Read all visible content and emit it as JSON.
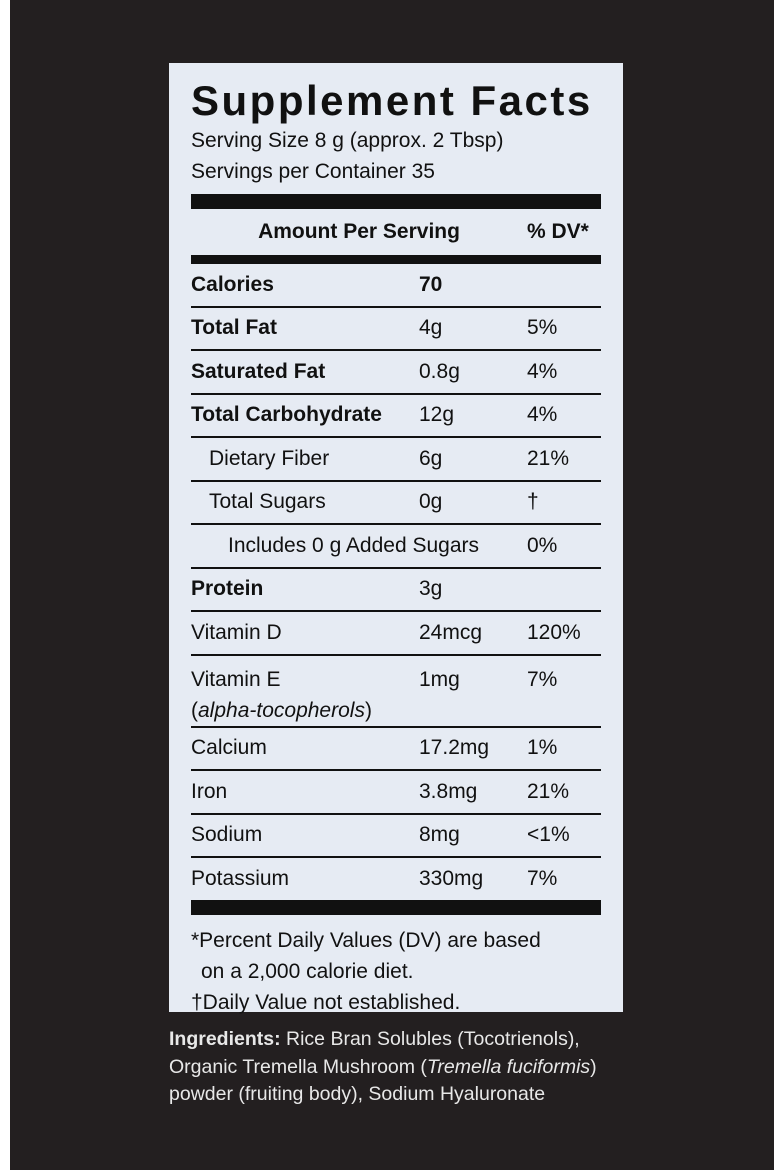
{
  "panel": {
    "title": "Supplement Facts",
    "serving_size": "Serving Size 8 g (approx. 2 Tbsp)",
    "servings_per_container": "Servings per Container 35",
    "header_amount": "Amount Per Serving",
    "header_dv": "% DV*",
    "rows": [
      {
        "name": "Calories",
        "amount": "70",
        "dv": ""
      },
      {
        "name": "Total Fat",
        "amount": "4g",
        "dv": "5%"
      },
      {
        "name": "Saturated Fat",
        "amount": "0.8g",
        "dv": "4%"
      },
      {
        "name": "Total Carbohydrate",
        "amount": "12g",
        "dv": "4%"
      },
      {
        "name": "Dietary Fiber",
        "amount": "6g",
        "dv": "21%"
      },
      {
        "name": "Total Sugars",
        "amount": "0g",
        "dv": "†"
      },
      {
        "name": "Includes 0 g Added Sugars",
        "amount": "",
        "dv": "0%"
      },
      {
        "name": "Protein",
        "amount": "3g",
        "dv": ""
      },
      {
        "name": "Vitamin D",
        "amount": "24mcg",
        "dv": "120%"
      },
      {
        "name": "Vitamin E",
        "subname": "alpha-tocopherols",
        "amount": "1mg",
        "dv": "7%"
      },
      {
        "name": "Calcium",
        "amount": "17.2mg",
        "dv": "1%"
      },
      {
        "name": "Iron",
        "amount": "3.8mg",
        "dv": "21%"
      },
      {
        "name": "Sodium",
        "amount": "8mg",
        "dv": "<1%"
      },
      {
        "name": "Potassium",
        "amount": "330mg",
        "dv": "7%"
      }
    ],
    "footnote_1": "*Percent Daily Values (DV) are based",
    "footnote_2": "on a 2,000 calorie diet.",
    "footnote_3": "†Daily Value not established."
  },
  "ingredients": {
    "label": "Ingredients:",
    "text_1": "Rice Bran Solubles (Tocotrienols),",
    "text_2a": "Organic Tremella Mushroom (",
    "text_2_italic": "Tremella fuciformis",
    "text_2b": ")",
    "text_3": "powder (fruiting body), Sodium Hyaluronate"
  },
  "colors": {
    "background": "#231f20",
    "panel": "#e6ebf3",
    "ink": "#111111"
  }
}
